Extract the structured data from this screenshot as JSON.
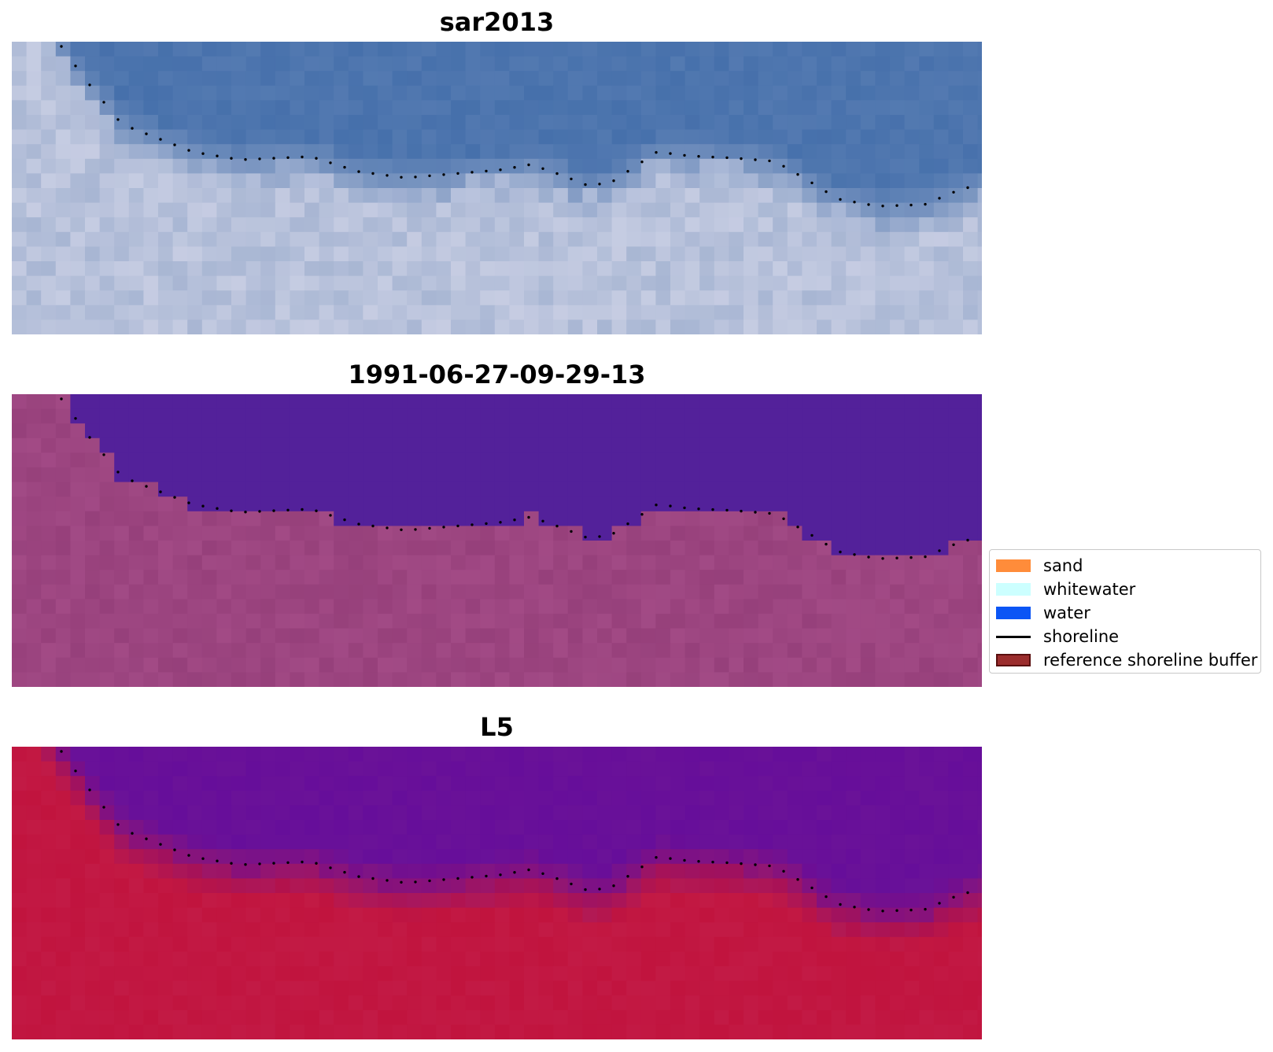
{
  "panels": [
    {
      "title": "sar2013"
    },
    {
      "title": "1991-06-27-09-29-13"
    },
    {
      "title": "L5"
    }
  ],
  "legend": {
    "items": [
      {
        "label": "sand",
        "kind": "patch",
        "color": "#ff8c3a"
      },
      {
        "label": "whitewater",
        "kind": "patch",
        "color": "#ccffff"
      },
      {
        "label": "water",
        "kind": "patch",
        "color": "#0b55f5"
      },
      {
        "label": "shoreline",
        "kind": "line",
        "color": "#000000"
      },
      {
        "label": "reference shoreline buffer",
        "kind": "patch",
        "color": "#9b2d2d",
        "edge": "#5a0f0f"
      }
    ]
  },
  "colors": {
    "rgb_water": "#4670ab",
    "rgb_land": "#a8b6d3",
    "classified_water": "#53219a",
    "classified_land": "#9c4580",
    "mndwi_water": "#6a1298",
    "mndwi_land": "#c21a45",
    "shoreline": "#000000"
  }
}
